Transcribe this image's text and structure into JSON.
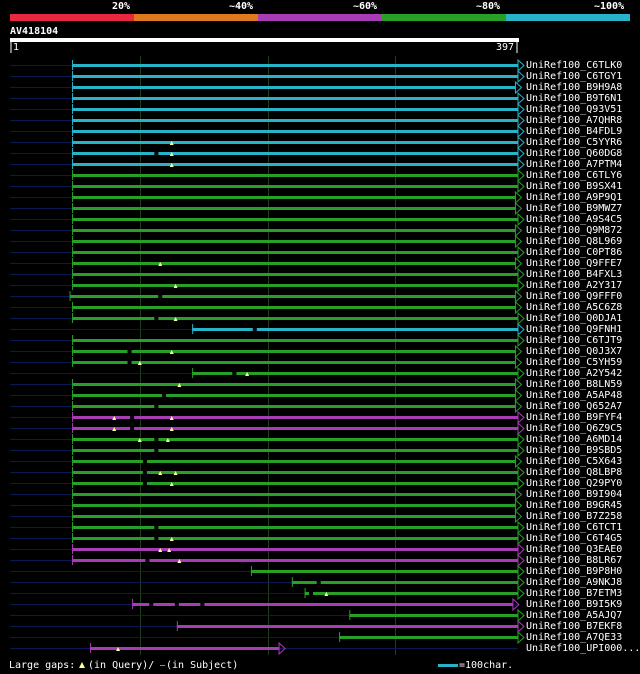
{
  "colors": {
    "c20": "#e8283c",
    "c40": "#e0781e",
    "c60": "#a83cb4",
    "c80": "#28a028",
    "c100": "#28b4c8",
    "bg": "#000000",
    "grid": "#1e3c1e",
    "dim": "#0a1a50",
    "axis": "#ffffff",
    "mark": "#ffff99"
  },
  "identity_scale": [
    {
      "label": "20%",
      "color": "#e8283c"
    },
    {
      "label": "~40%",
      "color": "#e0781e"
    },
    {
      "label": "~60%",
      "color": "#a83cb4"
    },
    {
      "label": "~80%",
      "color": "#28a028"
    },
    {
      "label": "~100%",
      "color": "#28b4c8"
    }
  ],
  "query": {
    "id": "AV418104",
    "start": "1",
    "end": "397",
    "length": 397
  },
  "alignments": [
    {
      "name": "UniRef100_C6TLK0",
      "color": "c100",
      "s": 48,
      "e": 397,
      "m": [],
      "g": []
    },
    {
      "name": "UniRef100_C6TGY1",
      "color": "c100",
      "s": 48,
      "e": 397,
      "m": [],
      "g": []
    },
    {
      "name": "UniRef100_B9H9A8",
      "color": "c100",
      "s": 48,
      "e": 395,
      "m": [],
      "g": []
    },
    {
      "name": "UniRef100_B9T6N1",
      "color": "c100",
      "s": 48,
      "e": 397,
      "m": [],
      "g": []
    },
    {
      "name": "UniRef100_Q93V51",
      "color": "c100",
      "s": 48,
      "e": 397,
      "m": [],
      "g": []
    },
    {
      "name": "UniRef100_A7QHR8",
      "color": "c100",
      "s": 48,
      "e": 397,
      "m": [],
      "g": []
    },
    {
      "name": "UniRef100_B4FDL9",
      "color": "c100",
      "s": 48,
      "e": 397,
      "m": [],
      "g": []
    },
    {
      "name": "UniRef100_C5YYR6",
      "color": "c100",
      "s": 48,
      "e": 397,
      "m": [
        126
      ],
      "g": []
    },
    {
      "name": "UniRef100_Q60DG8",
      "color": "c100",
      "s": 48,
      "e": 397,
      "m": [
        126
      ],
      "g": [
        114
      ]
    },
    {
      "name": "UniRef100_A7PTM4",
      "color": "c100",
      "s": 48,
      "e": 397,
      "m": [
        126
      ],
      "g": []
    },
    {
      "name": "UniRef100_C6TLY6",
      "color": "c80",
      "s": 48,
      "e": 397,
      "m": [],
      "g": []
    },
    {
      "name": "UniRef100_B9SX41",
      "color": "c80",
      "s": 48,
      "e": 397,
      "m": [],
      "g": []
    },
    {
      "name": "UniRef100_A9P9Q1",
      "color": "c80",
      "s": 48,
      "e": 395,
      "m": [],
      "g": []
    },
    {
      "name": "UniRef100_B9MWZ7",
      "color": "c80",
      "s": 48,
      "e": 395,
      "m": [],
      "g": []
    },
    {
      "name": "UniRef100_A9S4C5",
      "color": "c80",
      "s": 48,
      "e": 397,
      "m": [],
      "g": []
    },
    {
      "name": "UniRef100_Q9M872",
      "color": "c80",
      "s": 48,
      "e": 395,
      "m": [],
      "g": []
    },
    {
      "name": "UniRef100_Q8L969",
      "color": "c80",
      "s": 48,
      "e": 395,
      "m": [],
      "g": []
    },
    {
      "name": "UniRef100_C0PT86",
      "color": "c80",
      "s": 48,
      "e": 397,
      "m": [],
      "g": []
    },
    {
      "name": "UniRef100_Q9FFE7",
      "color": "c80",
      "s": 48,
      "e": 395,
      "m": [
        117
      ],
      "g": []
    },
    {
      "name": "UniRef100_B4FXL3",
      "color": "c80",
      "s": 48,
      "e": 397,
      "m": [],
      "g": []
    },
    {
      "name": "UniRef100_A2Y317",
      "color": "c80",
      "s": 48,
      "e": 397,
      "m": [
        129
      ],
      "g": []
    },
    {
      "name": "UniRef100_Q9FFF0",
      "color": "c80",
      "s": 46,
      "e": 395,
      "m": [],
      "g": [
        117
      ]
    },
    {
      "name": "UniRef100_A5C6Z8",
      "color": "c80",
      "s": 48,
      "e": 395,
      "m": [],
      "g": []
    },
    {
      "name": "UniRef100_Q0DJA1",
      "color": "c80",
      "s": 48,
      "e": 397,
      "m": [
        129
      ],
      "g": [
        114
      ]
    },
    {
      "name": "UniRef100_Q9FNH1",
      "color": "c100",
      "s": 142,
      "e": 397,
      "m": [],
      "g": [
        191
      ]
    },
    {
      "name": "UniRef100_C6TJT9",
      "color": "c80",
      "s": 48,
      "e": 397,
      "m": [],
      "g": []
    },
    {
      "name": "UniRef100_Q0J3X7",
      "color": "c80",
      "s": 48,
      "e": 395,
      "m": [
        126
      ],
      "g": [
        93
      ]
    },
    {
      "name": "UniRef100_C5YH59",
      "color": "c80",
      "s": 48,
      "e": 395,
      "m": [
        101
      ],
      "g": [
        93
      ]
    },
    {
      "name": "UniRef100_A2Y542",
      "color": "c80",
      "s": 142,
      "e": 397,
      "m": [
        185
      ],
      "g": [
        175
      ]
    },
    {
      "name": "UniRef100_B8LN59",
      "color": "c80",
      "s": 48,
      "e": 395,
      "m": [
        132
      ],
      "g": []
    },
    {
      "name": "UniRef100_A5AP48",
      "color": "c80",
      "s": 48,
      "e": 395,
      "m": [],
      "g": [
        120
      ]
    },
    {
      "name": "UniRef100_Q652A7",
      "color": "c80",
      "s": 48,
      "e": 395,
      "m": [],
      "g": [
        114
      ]
    },
    {
      "name": "UniRef100_B9FYF4",
      "color": "c60",
      "s": 48,
      "e": 397,
      "m": [
        81,
        126
      ],
      "g": [
        95
      ]
    },
    {
      "name": "UniRef100_Q6Z9C5",
      "color": "c60",
      "s": 48,
      "e": 397,
      "m": [
        81,
        126
      ],
      "g": [
        95
      ]
    },
    {
      "name": "UniRef100_A6MD14",
      "color": "c80",
      "s": 48,
      "e": 397,
      "m": [
        101,
        123
      ],
      "g": [
        114
      ]
    },
    {
      "name": "UniRef100_B9SBD5",
      "color": "c80",
      "s": 48,
      "e": 397,
      "m": [],
      "g": [
        114
      ]
    },
    {
      "name": "UniRef100_C5X643",
      "color": "c80",
      "s": 48,
      "e": 395,
      "m": [],
      "g": [
        105
      ]
    },
    {
      "name": "UniRef100_Q8LBP8",
      "color": "c80",
      "s": 48,
      "e": 397,
      "m": [
        117,
        129
      ],
      "g": [
        105
      ]
    },
    {
      "name": "UniRef100_Q29PY0",
      "color": "c80",
      "s": 48,
      "e": 397,
      "m": [
        126
      ],
      "g": [
        105
      ]
    },
    {
      "name": "UniRef100_B9I904",
      "color": "c80",
      "s": 48,
      "e": 395,
      "m": [],
      "g": []
    },
    {
      "name": "UniRef100_B9GR45",
      "color": "c80",
      "s": 48,
      "e": 395,
      "m": [],
      "g": []
    },
    {
      "name": "UniRef100_B7Z258",
      "color": "c80",
      "s": 48,
      "e": 395,
      "m": [],
      "g": []
    },
    {
      "name": "UniRef100_C6TCT1",
      "color": "c80",
      "s": 48,
      "e": 397,
      "m": [],
      "g": [
        114
      ]
    },
    {
      "name": "UniRef100_C6T4G5",
      "color": "c80",
      "s": 48,
      "e": 397,
      "m": [
        126
      ],
      "g": [
        114
      ]
    },
    {
      "name": "UniRef100_Q3EAE0",
      "color": "c60",
      "s": 48,
      "e": 397,
      "m": [
        117,
        124
      ],
      "g": []
    },
    {
      "name": "UniRef100_B8LR67",
      "color": "c60",
      "s": 48,
      "e": 397,
      "m": [
        132
      ],
      "g": [
        107
      ]
    },
    {
      "name": "UniRef100_B9P8H0",
      "color": "c80",
      "s": 188,
      "e": 397,
      "m": [],
      "g": []
    },
    {
      "name": "UniRef100_A9NKJ8",
      "color": "c80",
      "s": 220,
      "e": 397,
      "m": [],
      "g": [
        241
      ]
    },
    {
      "name": "UniRef100_B7ETM3",
      "color": "c80",
      "s": 230,
      "e": 397,
      "m": [
        247
      ],
      "g": [
        235
      ]
    },
    {
      "name": "UniRef100_B9I5K9",
      "color": "c60",
      "s": 95,
      "e": 393,
      "m": [],
      "g": [
        110,
        130,
        150
      ]
    },
    {
      "name": "UniRef100_A5AJQ7",
      "color": "c80",
      "s": 265,
      "e": 397,
      "m": [],
      "g": []
    },
    {
      "name": "UniRef100_B7EKF8",
      "color": "c60",
      "s": 130,
      "e": 397,
      "m": [],
      "g": []
    },
    {
      "name": "UniRef100_A7QE33",
      "color": "c80",
      "s": 257,
      "e": 397,
      "m": [],
      "g": []
    },
    {
      "name": "UniRef100_UPI000...",
      "color": "c60",
      "s": 62,
      "e": 210,
      "m": [
        84
      ],
      "g": []
    }
  ],
  "footer": {
    "gaps_label": "Large gaps:",
    "gaps_query": "(in Query)/",
    "gaps_subject": "(in Subject)",
    "scale_label": "=100char."
  }
}
